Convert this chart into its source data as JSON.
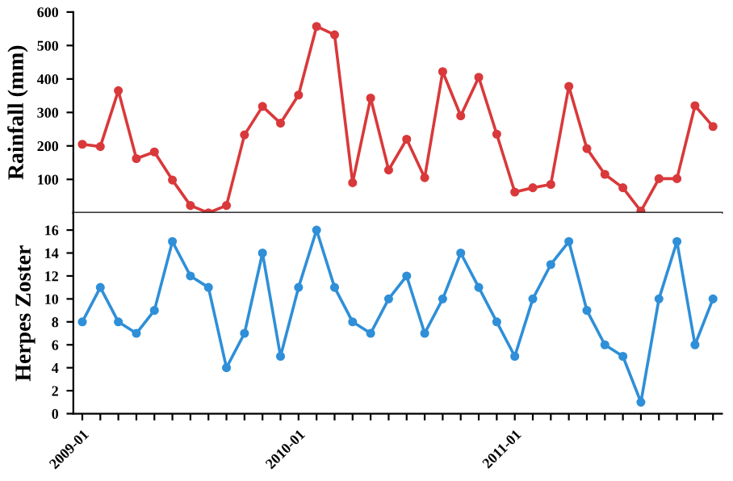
{
  "chart_data": [
    {
      "type": "line",
      "ylabel": "Rainfall (mm)",
      "categories": [
        "2009-01",
        null,
        null,
        null,
        null,
        null,
        null,
        null,
        null,
        null,
        null,
        null,
        "2010-01",
        null,
        null,
        null,
        null,
        null,
        null,
        null,
        null,
        null,
        null,
        null,
        "2011-01",
        null,
        null,
        null,
        null,
        null,
        null,
        null,
        null,
        null,
        null,
        null
      ],
      "series": [
        {
          "color": "#d9393b",
          "values": [
            205,
            198,
            365,
            162,
            182,
            98,
            22,
            0,
            22,
            233,
            318,
            268,
            352,
            557,
            532,
            90,
            343,
            128,
            220,
            105,
            422,
            290,
            405,
            235,
            62,
            75,
            85,
            378,
            192,
            115,
            75,
            5,
            102,
            102,
            320,
            258
          ]
        }
      ],
      "ylim": [
        0,
        600
      ],
      "yticks": [
        100,
        200,
        300,
        400,
        500,
        600
      ],
      "marker": "circle",
      "grid": false,
      "tick_labels": "y"
    },
    {
      "type": "line",
      "ylabel": "Herpes Zoster",
      "categories": [
        "2009-01",
        null,
        null,
        null,
        null,
        null,
        null,
        null,
        null,
        null,
        null,
        null,
        "2010-01",
        null,
        null,
        null,
        null,
        null,
        null,
        null,
        null,
        null,
        null,
        null,
        "2011-01",
        null,
        null,
        null,
        null,
        null,
        null,
        null,
        null,
        null,
        null,
        null
      ],
      "series": [
        {
          "color": "#2f8fd8",
          "values": [
            8,
            11,
            8,
            7,
            9,
            15,
            12,
            11,
            4,
            7,
            14,
            5,
            11,
            16,
            11,
            8,
            7,
            10,
            12,
            7,
            10,
            14,
            11,
            8,
            5,
            10,
            13,
            15,
            9,
            6,
            5,
            1,
            10,
            15,
            6,
            10
          ]
        }
      ],
      "ylim": [
        0,
        17.5
      ],
      "yticks": [
        0,
        2,
        4,
        6,
        8,
        10,
        12,
        14,
        16
      ],
      "marker": "circle",
      "grid": false
    }
  ]
}
